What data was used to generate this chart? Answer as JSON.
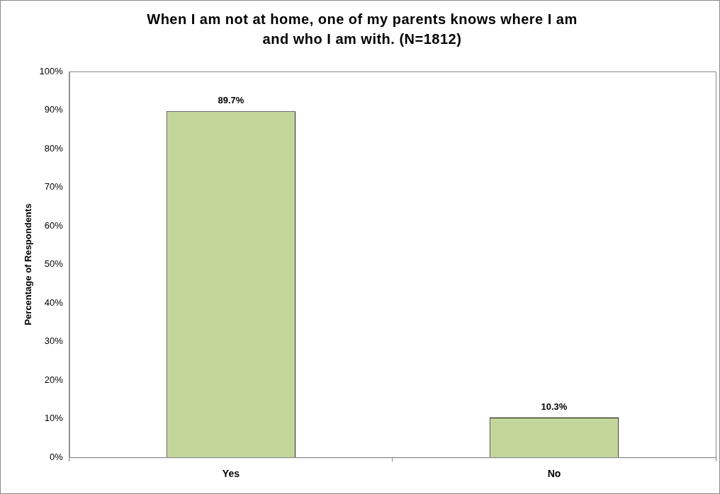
{
  "chart_data": {
    "type": "bar",
    "title": "When I am not at home, one of my parents knows where I am and who I am with. (N=1812)",
    "ylabel": "Percentage of Respondents",
    "categories": [
      "Yes",
      "No"
    ],
    "values": [
      89.7,
      10.3
    ],
    "color": "#c4d79b",
    "value_labels": [
      "89.7%",
      "10.3%"
    ],
    "ylim": [
      0,
      100
    ],
    "yticks": [
      {
        "value": 0,
        "label": "0%"
      },
      {
        "value": 10,
        "label": "10%"
      },
      {
        "value": 20,
        "label": "20%"
      },
      {
        "value": 30,
        "label": "30%"
      },
      {
        "value": 40,
        "label": "40%"
      },
      {
        "value": 50,
        "label": "50%"
      },
      {
        "value": 60,
        "label": "60%"
      },
      {
        "value": 70,
        "label": "70%"
      },
      {
        "value": 80,
        "label": "80%"
      },
      {
        "value": 90,
        "label": "90%"
      },
      {
        "value": 100,
        "label": "100%"
      }
    ],
    "grid": false,
    "legend": false
  }
}
